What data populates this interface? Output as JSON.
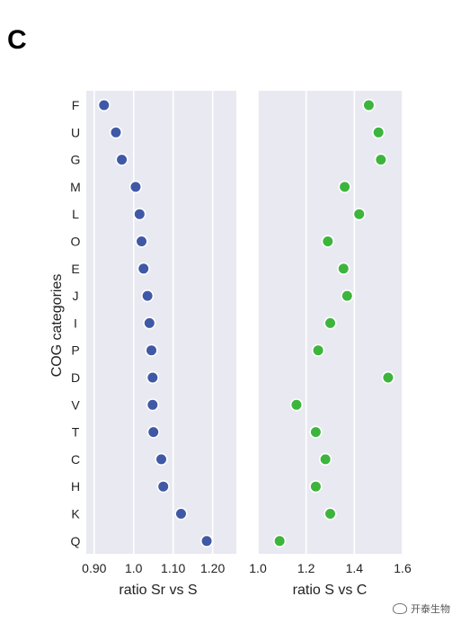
{
  "panel_label": "C",
  "watermark": "开泰生物",
  "colors": {
    "left_series": "#4059a6",
    "right_series": "#3db53d",
    "panel_bg": "#e9e9f2",
    "grid": "#ffffff"
  },
  "chart_data": [
    {
      "type": "scatter",
      "orientation": "horizontal-dot",
      "ylabel": "COG categories",
      "xlabel": "ratio Sr vs S",
      "categories": [
        "F",
        "U",
        "G",
        "M",
        "L",
        "O",
        "E",
        "J",
        "I",
        "P",
        "D",
        "V",
        "T",
        "C",
        "H",
        "K",
        "Q"
      ],
      "xlim": [
        0.88,
        1.26
      ],
      "xticks": [
        "0.90",
        "1.0",
        "1.10",
        "1.20"
      ],
      "xtick_values": [
        0.9,
        1.0,
        1.1,
        1.2
      ],
      "values": [
        0.925,
        0.955,
        0.97,
        1.005,
        1.015,
        1.02,
        1.025,
        1.035,
        1.04,
        1.045,
        1.048,
        1.048,
        1.05,
        1.07,
        1.075,
        1.12,
        1.185
      ],
      "grid": true
    },
    {
      "type": "scatter",
      "orientation": "horizontal-dot",
      "xlabel": "ratio S vs C",
      "categories": [
        "F",
        "U",
        "G",
        "M",
        "L",
        "O",
        "E",
        "J",
        "I",
        "P",
        "D",
        "V",
        "T",
        "C",
        "H",
        "K",
        "Q"
      ],
      "xlim": [
        1.0,
        1.6
      ],
      "xticks": [
        "1.0",
        "1.2",
        "1.4",
        "1.6"
      ],
      "xtick_values": [
        1.0,
        1.2,
        1.4,
        1.6
      ],
      "values": [
        1.46,
        1.5,
        1.51,
        1.36,
        1.42,
        1.29,
        1.355,
        1.37,
        1.3,
        1.25,
        1.54,
        1.16,
        1.24,
        1.28,
        1.24,
        1.3,
        1.09
      ],
      "grid": true
    }
  ]
}
